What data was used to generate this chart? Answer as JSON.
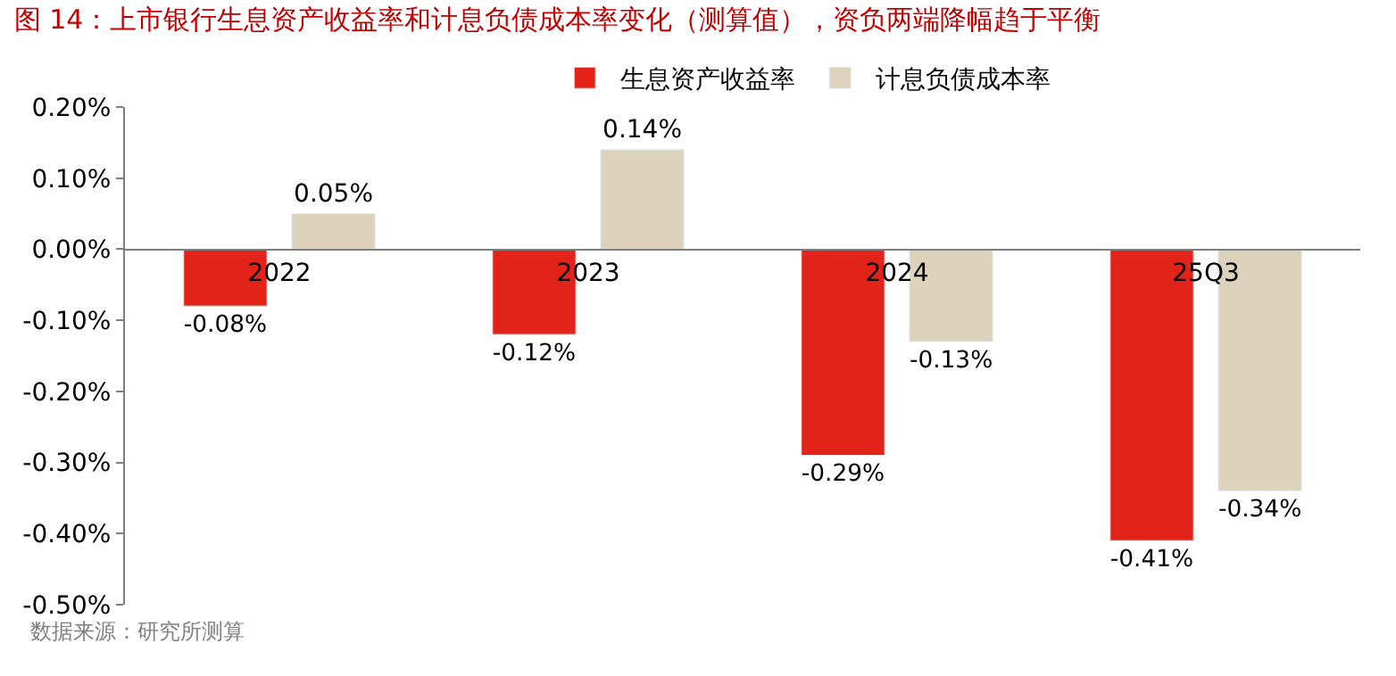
{
  "chart_data": {
    "type": "bar",
    "title": "图 14：上市银行生息资产收益率和计息负债成本率变化（测算值），资负两端降幅趋于平衡",
    "categories": [
      "2022",
      "2023",
      "2024",
      "25Q3"
    ],
    "series": [
      {
        "name": "生息资产收益率",
        "color": "#e2231a",
        "values": [
          -0.08,
          -0.12,
          -0.29,
          -0.41
        ],
        "value_labels": [
          "-0.08%",
          "-0.12%",
          "-0.29%",
          "-0.41%"
        ]
      },
      {
        "name": "计息负债成本率",
        "color": "#ddd3bd",
        "values": [
          0.05,
          0.14,
          -0.13,
          -0.34
        ],
        "value_labels": [
          "0.05%",
          "0.14%",
          "-0.13%",
          "-0.34%"
        ]
      }
    ],
    "ylim": [
      -0.5,
      0.2
    ],
    "yticks": [
      {
        "value": -0.5,
        "label": "-0.50%"
      },
      {
        "value": -0.4,
        "label": "-0.40%"
      },
      {
        "value": -0.3,
        "label": "-0.30%"
      },
      {
        "value": -0.2,
        "label": "-0.20%"
      },
      {
        "value": -0.1,
        "label": "-0.10%"
      },
      {
        "value": 0,
        "label": "0.00%"
      },
      {
        "value": 0.1,
        "label": "0.10%"
      },
      {
        "value": 0.2,
        "label": "0.20%"
      }
    ],
    "legend": "top",
    "annotations": [
      "数据来源：研究所测算"
    ]
  }
}
